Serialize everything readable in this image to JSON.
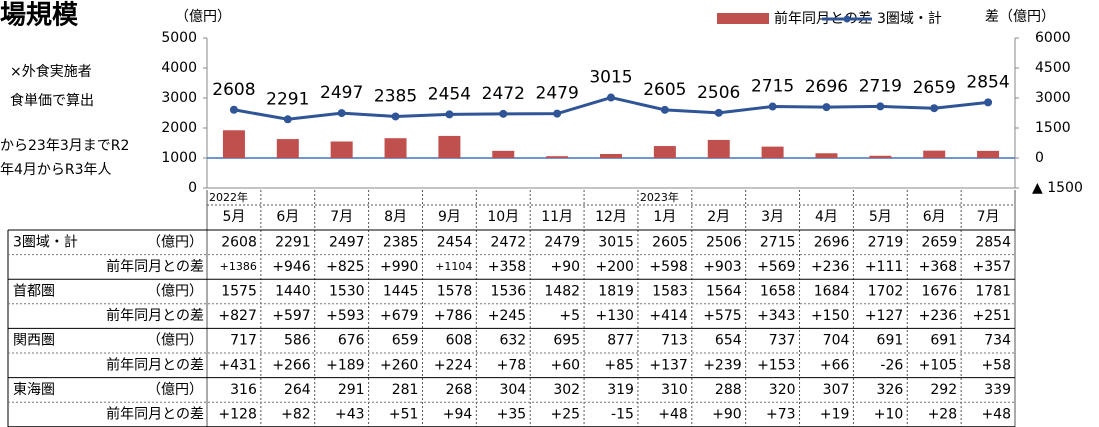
{
  "chart_data": {
    "type": "bar-line",
    "title": "場規模",
    "annotations": [
      "×外食実施者",
      "食単価で算出",
      "から23年3月までR2",
      "年4月からR3年人"
    ],
    "y_label": "（億円）",
    "y2_label": "差（億円）",
    "categories": [
      "5月",
      "6月",
      "7月",
      "8月",
      "9月",
      "10月",
      "11月",
      "12月",
      "1月",
      "2月",
      "3月",
      "4月",
      "5月",
      "6月",
      "7月"
    ],
    "year_labels": [
      "2022年",
      null,
      null,
      null,
      null,
      null,
      null,
      null,
      "2023年",
      null,
      null,
      null,
      null,
      null,
      null
    ],
    "ylim": [
      0,
      5000
    ],
    "yticks": [
      0,
      1000,
      2000,
      3000,
      4000,
      5000
    ],
    "y2lim": [
      -1500,
      6000
    ],
    "y2ticks": [
      {
        "value": -1500,
        "label": "▲ 1500"
      },
      0,
      1500,
      3000,
      4500,
      6000
    ],
    "series": [
      {
        "name": "3圏域・計",
        "type": "line",
        "color": "#2f5597",
        "values": [
          2608,
          2291,
          2497,
          2385,
          2454,
          2472,
          2479,
          3015,
          2605,
          2506,
          2715,
          2696,
          2719,
          2659,
          2854
        ]
      },
      {
        "name": "前年同月との差",
        "type": "bar",
        "axis": "y2",
        "color": "#c0504d",
        "values": [
          1386,
          946,
          825,
          990,
          1104,
          358,
          90,
          200,
          598,
          903,
          569,
          236,
          111,
          368,
          357
        ],
        "value_labels": [
          "+1386",
          "+946",
          "+825",
          "+990",
          "+1104",
          "+358",
          "+90",
          "+200",
          "+598",
          "+903",
          "+569",
          "+236",
          "+111",
          "+368",
          "+357"
        ]
      }
    ]
  },
  "table": {
    "rows": [
      {
        "label": "3圏域・計",
        "unit": "（億円）"
      },
      {
        "label": "前年同月との差"
      },
      {
        "label": "首都圏",
        "unit": "（億円）",
        "values": [
          1575,
          1440,
          1530,
          1445,
          1578,
          1536,
          1482,
          1819,
          1583,
          1564,
          1658,
          1684,
          1702,
          1676,
          1781
        ]
      },
      {
        "label": "前年同月との差",
        "values": [
          "+827",
          "+597",
          "+593",
          "+679",
          "+786",
          "+245",
          "+5",
          "+130",
          "+414",
          "+575",
          "+343",
          "+150",
          "+127",
          "+236",
          "+251"
        ]
      },
      {
        "label": "関西圏",
        "unit": "（億円）",
        "values": [
          717,
          586,
          676,
          659,
          608,
          632,
          695,
          877,
          713,
          654,
          737,
          704,
          691,
          691,
          734
        ]
      },
      {
        "label": "前年同月との差",
        "values": [
          "+431",
          "+266",
          "+189",
          "+260",
          "+224",
          "+78",
          "+60",
          "+85",
          "+137",
          "+239",
          "+153",
          "+66",
          "-26",
          "+105",
          "+58"
        ]
      },
      {
        "label": "東海圏",
        "unit": "（億円）",
        "values": [
          316,
          264,
          291,
          281,
          268,
          304,
          302,
          319,
          310,
          288,
          320,
          307,
          326,
          292,
          339
        ]
      },
      {
        "label": "前年同月との差",
        "values": [
          "+128",
          "+82",
          "+43",
          "+51",
          "+94",
          "+35",
          "+25",
          "-15",
          "+48",
          "+90",
          "+73",
          "+19",
          "+10",
          "+28",
          "+48"
        ]
      }
    ]
  }
}
